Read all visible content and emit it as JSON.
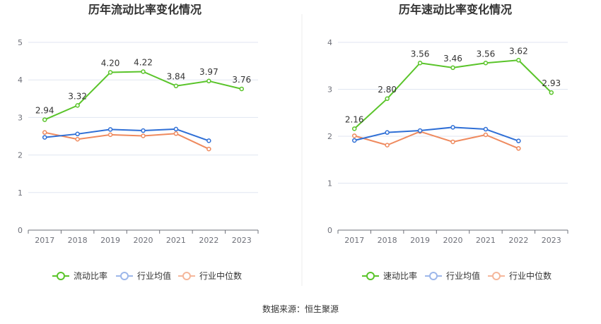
{
  "source": "数据来源：恒生聚源",
  "colors": {
    "main": "#5ac42a",
    "avg": "#2f6fd6",
    "median": "#ef8a5e",
    "avg_legend": "#9db7ea",
    "median_legend": "#f5b79b"
  },
  "chart_data": [
    {
      "type": "line",
      "title": "历年流动比率变化情况",
      "categories": [
        "2017",
        "2018",
        "2019",
        "2020",
        "2021",
        "2022",
        "2023"
      ],
      "ylim": [
        0,
        5
      ],
      "yticks": [
        "0",
        "1",
        "2",
        "3",
        "4",
        "5"
      ],
      "grid": true,
      "legend": "bottom",
      "series": [
        {
          "name": "流动比率",
          "values": [
            2.94,
            3.32,
            4.2,
            4.22,
            3.84,
            3.97,
            3.76
          ],
          "labels": [
            "2.94",
            "3.32",
            "4.20",
            "4.22",
            "3.84",
            "3.97",
            "3.76"
          ]
        },
        {
          "name": "行业均值",
          "values": [
            2.47,
            2.56,
            2.68,
            2.65,
            2.69,
            2.38,
            null
          ]
        },
        {
          "name": "行业中位数",
          "values": [
            2.6,
            2.42,
            2.54,
            2.51,
            2.57,
            2.16,
            null
          ]
        }
      ]
    },
    {
      "type": "line",
      "title": "历年速动比率变化情况",
      "categories": [
        "2017",
        "2018",
        "2019",
        "2020",
        "2021",
        "2022",
        "2023"
      ],
      "ylim": [
        0,
        4
      ],
      "yticks": [
        "0",
        "1",
        "2",
        "3",
        "4"
      ],
      "grid": true,
      "legend": "bottom",
      "series": [
        {
          "name": "速动比率",
          "values": [
            2.16,
            2.8,
            3.56,
            3.46,
            3.56,
            3.62,
            2.93
          ],
          "labels": [
            "2.16",
            "2.80",
            "3.56",
            "3.46",
            "3.56",
            "3.62",
            "2.93"
          ]
        },
        {
          "name": "行业均值",
          "values": [
            1.91,
            2.08,
            2.12,
            2.19,
            2.15,
            1.9,
            null
          ]
        },
        {
          "name": "行业中位数",
          "values": [
            2.01,
            1.81,
            2.1,
            1.88,
            2.03,
            1.74,
            null
          ]
        }
      ]
    }
  ]
}
